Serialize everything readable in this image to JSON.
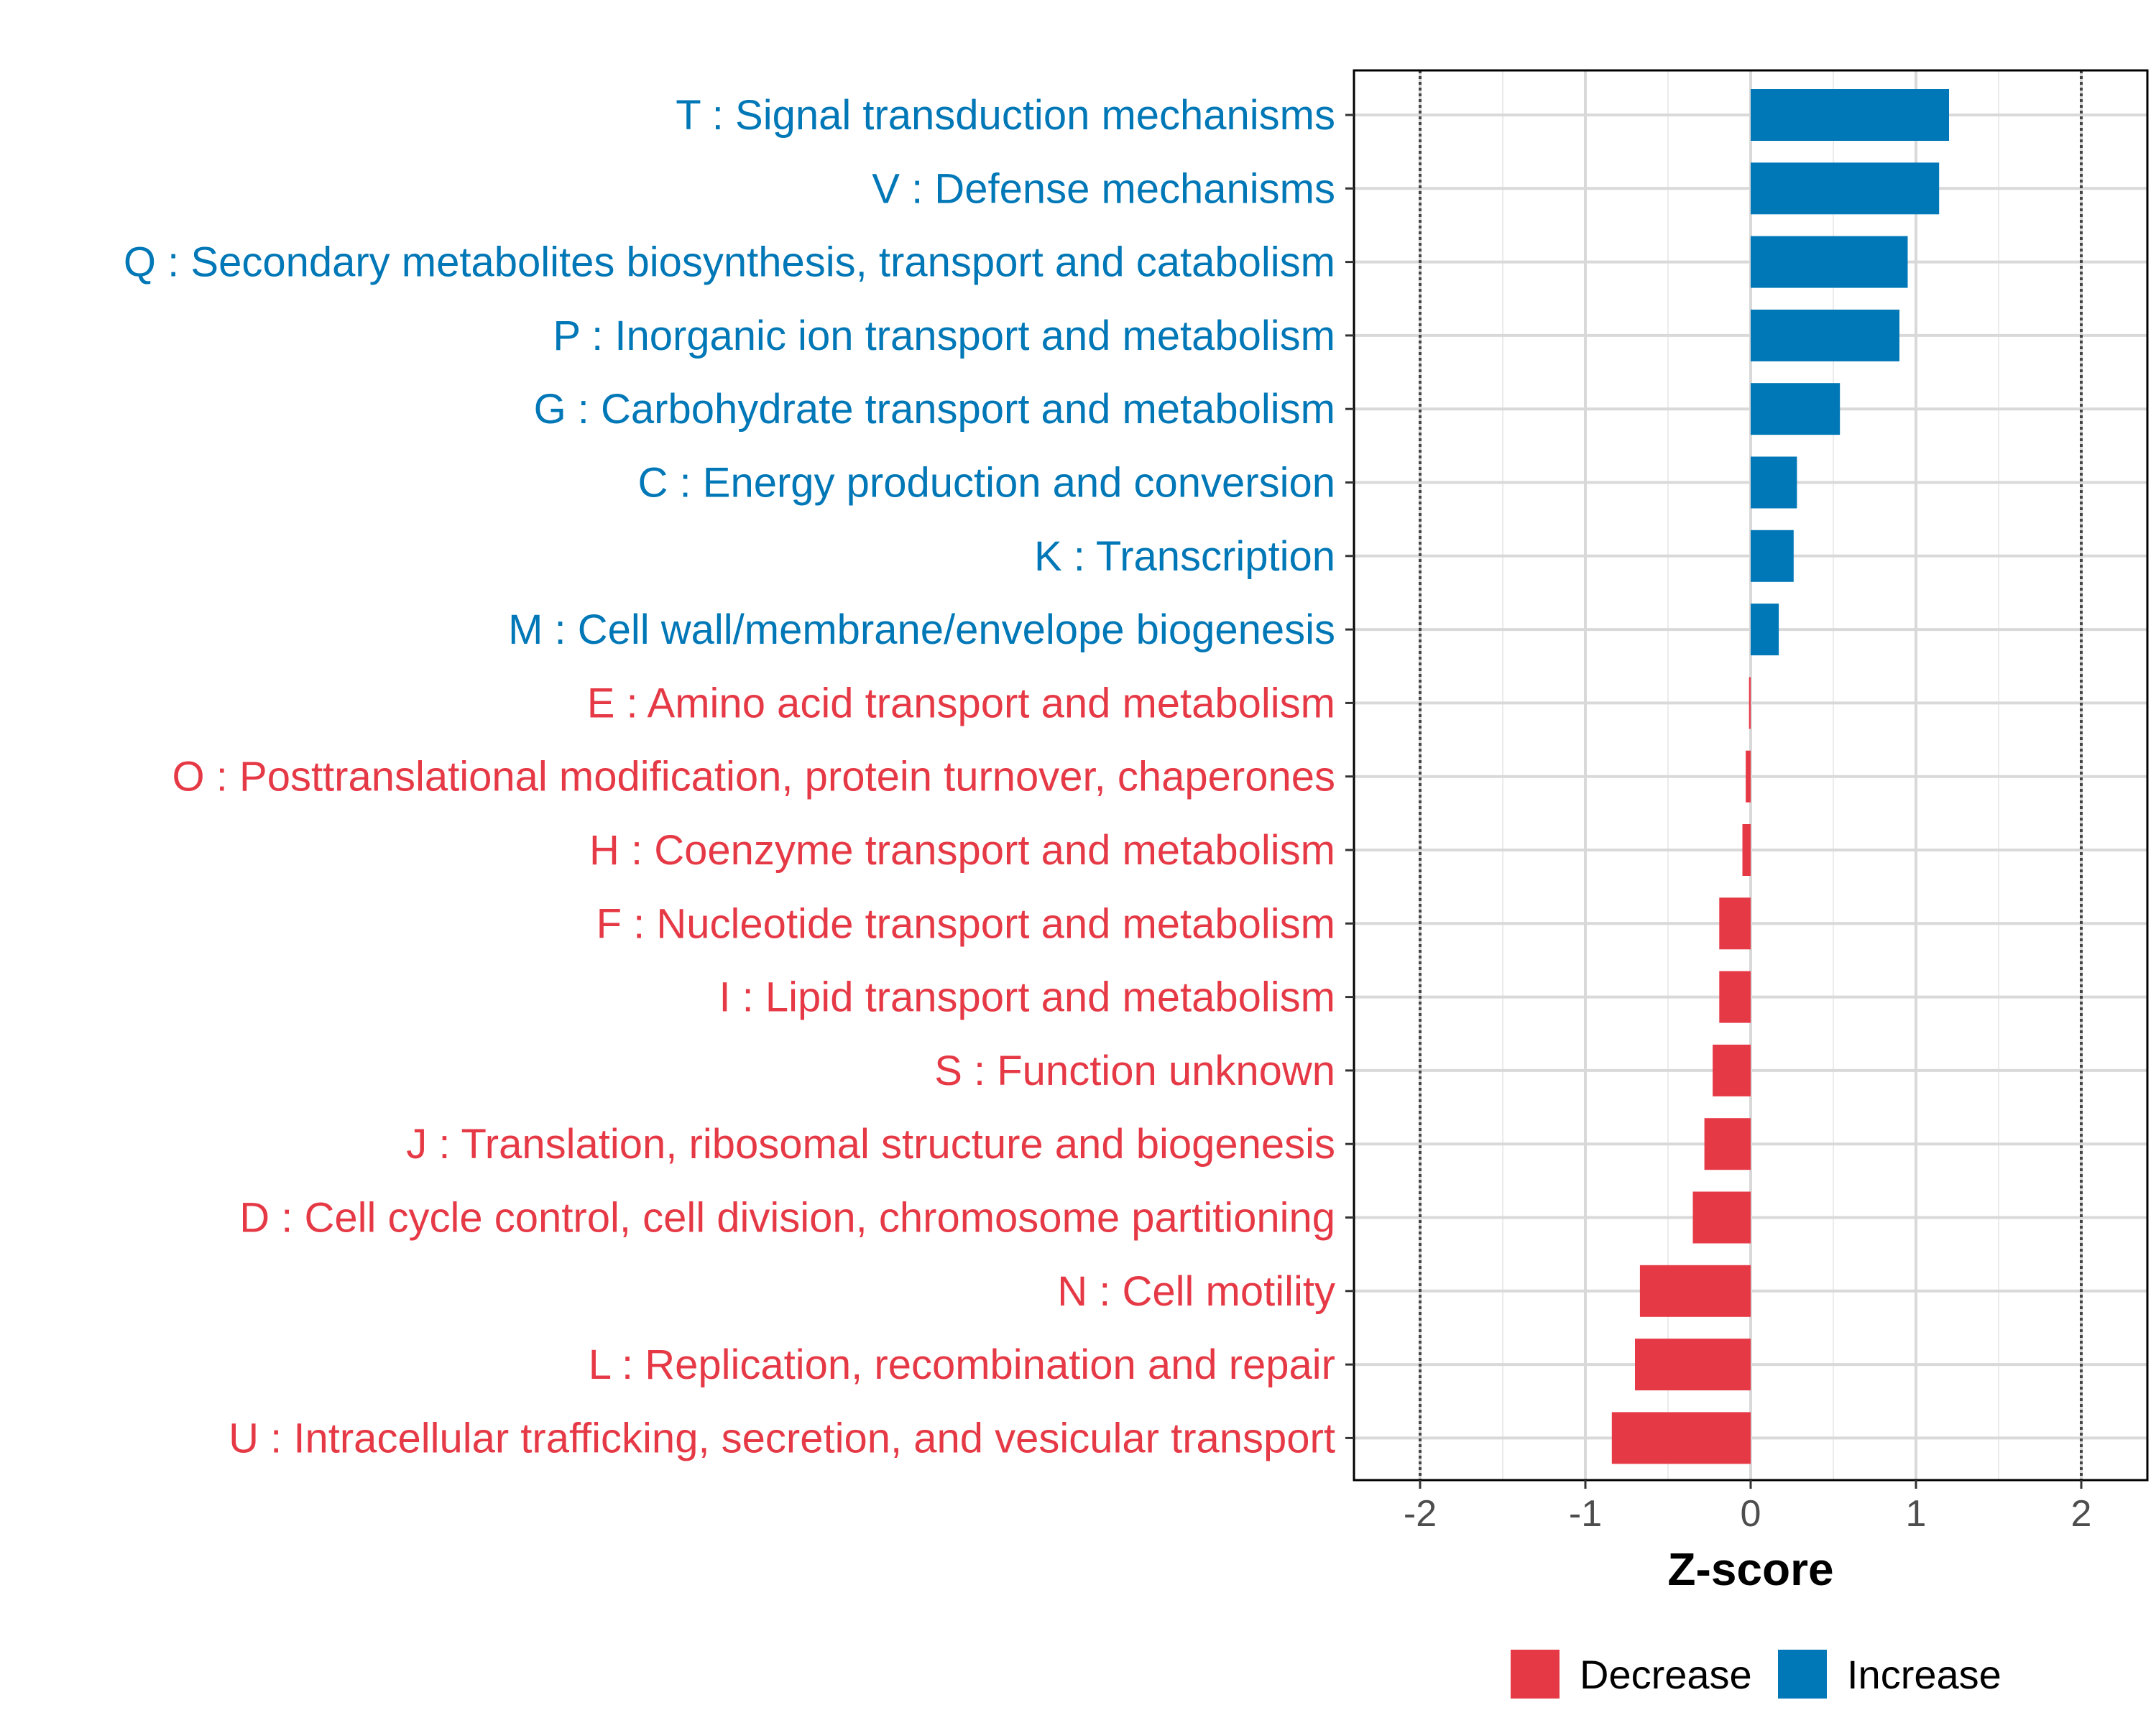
{
  "chart_data": {
    "type": "bar",
    "orientation": "horizontal",
    "categories": [
      "T : Signal transduction mechanisms",
      "V : Defense mechanisms",
      "Q : Secondary metabolites biosynthesis, transport and catabolism",
      "P : Inorganic ion transport and metabolism",
      "G : Carbohydrate transport and metabolism",
      "C : Energy production and conversion",
      "K : Transcription",
      "M : Cell wall/membrane/envelope biogenesis",
      "E : Amino acid transport and metabolism",
      "O : Posttranslational modification, protein turnover, chaperones",
      "H : Coenzyme transport and metabolism",
      "F : Nucleotide transport and metabolism",
      "I : Lipid transport and metabolism",
      "S : Function unknown",
      "J : Translation, ribosomal structure and biogenesis",
      "D : Cell cycle control, cell division, chromosome partitioning",
      "N : Cell motility",
      "L : Replication, recombination and repair",
      "U : Intracellular trafficking, secretion, and vesicular transport"
    ],
    "values": [
      1.2,
      1.14,
      0.95,
      0.9,
      0.54,
      0.28,
      0.26,
      0.17,
      -0.01,
      -0.03,
      -0.05,
      -0.19,
      -0.19,
      -0.23,
      -0.28,
      -0.35,
      -0.67,
      -0.7,
      -0.84
    ],
    "groups": [
      "Increase",
      "Increase",
      "Increase",
      "Increase",
      "Increase",
      "Increase",
      "Increase",
      "Increase",
      "Decrease",
      "Decrease",
      "Decrease",
      "Decrease",
      "Decrease",
      "Decrease",
      "Decrease",
      "Decrease",
      "Decrease",
      "Decrease",
      "Decrease"
    ],
    "x_ticks": [
      "-2",
      "-1",
      "0",
      "1",
      "2"
    ],
    "x_tick_values": [
      -2,
      -1,
      0,
      1,
      2
    ],
    "xlim": [
      -2.4,
      2.4
    ],
    "reference_lines": [
      -2,
      2
    ],
    "xlabel": "Z-score",
    "ylabel": "",
    "title": "",
    "grid": true,
    "legend": {
      "position": "bottom-right",
      "items": [
        {
          "name": "Decrease",
          "color": "#E63946"
        },
        {
          "name": "Increase",
          "color": "#0077B6"
        }
      ]
    },
    "colors": {
      "Decrease": "#E63946",
      "Increase": "#0077B6"
    }
  }
}
